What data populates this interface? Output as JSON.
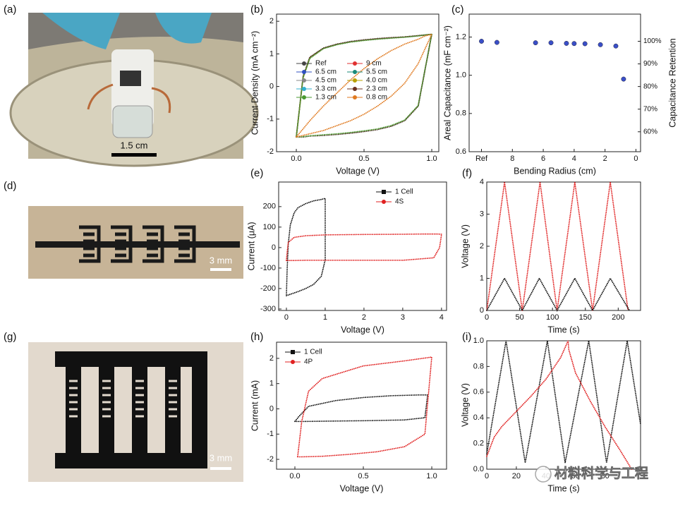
{
  "photos": [
    {
      "label": "(a)",
      "scale_bar": "1.5 cm"
    },
    {
      "label": "(d)",
      "scale_bar": "3 mm"
    },
    {
      "label": "(g)",
      "scale_bar": "3 mm"
    }
  ],
  "watermark": "材料科学与工程",
  "chart_data": [
    {
      "type": "line",
      "label": "(b)",
      "xlabel": "Voltage (V)",
      "ylabel": "Current Density (mA cm⁻²)",
      "xlim": [
        -0.146,
        1.052
      ],
      "ylim": [
        -2,
        2.22
      ],
      "xticks": [
        {
          "value": 0,
          "label": "0.0"
        },
        0.5,
        {
          "value": 1,
          "label": "1.0"
        }
      ],
      "yticks": [
        -2,
        -1,
        0,
        1,
        2
      ],
      "legend": "center",
      "x": [
        0,
        0.05,
        0.1,
        0.2,
        0.3,
        0.4,
        0.5,
        0.6,
        0.7,
        0.8,
        0.9,
        1.0,
        0.95,
        0.9,
        0.8,
        0.7,
        0.6,
        0.5,
        0.4,
        0.3,
        0.2,
        0.1,
        0.05,
        0
      ],
      "series": [
        {
          "name": "Ref",
          "color": "#444444",
          "marker": "circle",
          "values": [
            -1.55,
            -1.55,
            -1.52,
            -1.5,
            -1.47,
            -1.43,
            -1.38,
            -1.32,
            -1.22,
            -1.05,
            -0.6,
            1.6,
            1.58,
            1.56,
            1.52,
            1.5,
            1.47,
            1.43,
            1.38,
            1.3,
            1.18,
            0.9,
            0.3,
            -1.55
          ]
        },
        {
          "name": "9 cm",
          "color": "#e03030",
          "marker": "circle",
          "values": [
            -1.55,
            -1.55,
            -1.52,
            -1.5,
            -1.47,
            -1.43,
            -1.38,
            -1.32,
            -1.22,
            -1.05,
            -0.6,
            1.6,
            1.58,
            1.56,
            1.52,
            1.5,
            1.47,
            1.43,
            1.38,
            1.3,
            1.18,
            0.9,
            0.3,
            -1.55
          ]
        },
        {
          "name": "6.5 cm",
          "color": "#3050c0",
          "marker": "circle",
          "values": [
            -1.55,
            -1.54,
            -1.52,
            -1.49,
            -1.46,
            -1.42,
            -1.37,
            -1.31,
            -1.21,
            -1.04,
            -0.6,
            1.6,
            1.58,
            1.56,
            1.52,
            1.49,
            1.46,
            1.42,
            1.37,
            1.29,
            1.17,
            0.88,
            0.28,
            -1.55
          ]
        },
        {
          "name": "5.5 cm",
          "color": "#1a8a7a",
          "marker": "circle",
          "values": [
            -1.55,
            -1.55,
            -1.52,
            -1.5,
            -1.47,
            -1.43,
            -1.38,
            -1.32,
            -1.22,
            -1.05,
            -0.6,
            1.6,
            1.58,
            1.56,
            1.52,
            1.5,
            1.47,
            1.43,
            1.38,
            1.3,
            1.18,
            0.9,
            0.3,
            -1.55
          ]
        },
        {
          "name": "4.5 cm",
          "color": "#888888",
          "marker": "circle",
          "values": [
            -1.55,
            -1.55,
            -1.52,
            -1.5,
            -1.47,
            -1.43,
            -1.38,
            -1.32,
            -1.22,
            -1.05,
            -0.6,
            1.6,
            1.58,
            1.56,
            1.52,
            1.5,
            1.47,
            1.43,
            1.38,
            1.3,
            1.18,
            0.9,
            0.3,
            -1.55
          ]
        },
        {
          "name": "4.0 cm",
          "color": "#b8a000",
          "marker": "circle",
          "values": [
            -1.55,
            -1.54,
            -1.52,
            -1.49,
            -1.46,
            -1.42,
            -1.37,
            -1.31,
            -1.21,
            -1.04,
            -0.6,
            1.6,
            1.58,
            1.56,
            1.52,
            1.49,
            1.46,
            1.42,
            1.37,
            1.29,
            1.17,
            0.88,
            0.28,
            -1.55
          ]
        },
        {
          "name": "3.3 cm",
          "color": "#30b0d0",
          "marker": "circle",
          "values": [
            -1.55,
            -1.55,
            -1.52,
            -1.5,
            -1.47,
            -1.43,
            -1.38,
            -1.32,
            -1.22,
            -1.05,
            -0.6,
            1.6,
            1.58,
            1.56,
            1.52,
            1.5,
            1.47,
            1.43,
            1.38,
            1.3,
            1.18,
            0.9,
            0.3,
            -1.55
          ]
        },
        {
          "name": "2.3 cm",
          "color": "#6a3020",
          "marker": "circle",
          "values": [
            -1.55,
            -1.55,
            -1.52,
            -1.5,
            -1.47,
            -1.43,
            -1.38,
            -1.32,
            -1.22,
            -1.05,
            -0.6,
            1.6,
            1.58,
            1.56,
            1.52,
            1.5,
            1.47,
            1.43,
            1.38,
            1.3,
            1.18,
            0.9,
            0.3,
            -1.55
          ]
        },
        {
          "name": "1.3 cm",
          "color": "#4a9a30",
          "marker": "circle",
          "values": [
            -1.55,
            -1.54,
            -1.51,
            -1.48,
            -1.45,
            -1.41,
            -1.36,
            -1.3,
            -1.2,
            -1.03,
            -0.58,
            1.6,
            1.58,
            1.55,
            1.51,
            1.48,
            1.45,
            1.41,
            1.36,
            1.28,
            1.16,
            0.86,
            0.26,
            -1.55
          ]
        },
        {
          "name": "0.8 cm",
          "color": "#e07a20",
          "marker": "circle",
          "values": [
            -1.55,
            -1.5,
            -1.45,
            -1.35,
            -1.2,
            -1.05,
            -0.85,
            -0.6,
            -0.3,
            0.1,
            0.7,
            1.6,
            1.55,
            1.45,
            1.3,
            1.1,
            0.85,
            0.55,
            0.2,
            -0.2,
            -0.6,
            -1.05,
            -1.3,
            -1.55
          ]
        }
      ]
    },
    {
      "type": "scatter",
      "label": "(c)",
      "xlabel": "Bending Radius (cm)",
      "ylabel": "Areal Capacitance (mF cm⁻²)",
      "y2label": "Capacitance Retention",
      "xlim": [
        10.8,
        -0.3
      ],
      "ylim": [
        0.6,
        1.32
      ],
      "y2lim": [
        51.2,
        112
      ],
      "xticks": [
        {
          "value": 10,
          "label": "Ref"
        },
        8,
        6,
        4,
        2,
        0
      ],
      "yticks": [
        0.6,
        0.8,
        {
          "value": 1,
          "label": "1.0"
        },
        1.2
      ],
      "y2ticks": [
        {
          "value": 60,
          "label": "60%"
        },
        {
          "value": 70,
          "label": "70%"
        },
        {
          "value": 80,
          "label": "80%"
        },
        {
          "value": 90,
          "label": "90%"
        },
        {
          "value": 100,
          "label": "100%"
        }
      ],
      "color": "#3a4fc8",
      "x": [
        10,
        9,
        6.5,
        5.5,
        4.5,
        4.0,
        3.3,
        2.3,
        1.3,
        0.8
      ],
      "values": [
        1.178,
        1.172,
        1.17,
        1.17,
        1.167,
        1.166,
        1.165,
        1.16,
        1.153,
        0.98
      ]
    },
    {
      "type": "line",
      "label": "(e)",
      "xlabel": "Voltage (V)",
      "ylabel": "Current (μA)",
      "xlim": [
        -0.2,
        4.13
      ],
      "ylim": [
        -307,
        320
      ],
      "xticks": [
        0,
        1,
        2,
        3,
        4
      ],
      "yticks": [
        -300,
        -200,
        -100,
        0,
        100,
        200
      ],
      "legend": "upper right",
      "series": [
        {
          "name": "1 Cell",
          "color": "#111111",
          "marker": "square",
          "x": [
            0,
            0.1,
            0.3,
            0.5,
            0.7,
            0.9,
            1.0,
            1.0,
            1.0,
            0.9,
            0.7,
            0.5,
            0.3,
            0.2,
            0.1,
            0.05,
            0.02,
            0
          ],
          "values": [
            -235,
            -228,
            -215,
            -200,
            -180,
            -140,
            -60,
            100,
            240,
            235,
            228,
            215,
            195,
            170,
            110,
            20,
            -100,
            -230
          ]
        },
        {
          "name": "4S",
          "color": "#e02020",
          "marker": "circle",
          "x": [
            0,
            0.05,
            0.2,
            0.5,
            1,
            2,
            3,
            3.8,
            3.95,
            4.0,
            3.9,
            3.5,
            3,
            2,
            1,
            0.5,
            0.2,
            0.05,
            0.02,
            0
          ],
          "values": [
            -63,
            -63,
            -63,
            -62,
            -62,
            -62,
            -62,
            -50,
            0,
            65,
            66,
            66,
            65,
            64,
            62,
            58,
            50,
            25,
            -20,
            -63
          ]
        }
      ]
    },
    {
      "type": "line",
      "label": "(f)",
      "xlabel": "Time (s)",
      "ylabel": "Voltage (V)",
      "xlim": [
        0,
        234
      ],
      "ylim": [
        0,
        4
      ],
      "xticks": [
        0,
        50,
        100,
        150,
        200
      ],
      "yticks": [
        0,
        1,
        2,
        3,
        4
      ],
      "series": [
        {
          "color": "#e02020",
          "x": [
            0,
            27,
            54,
            81,
            107,
            134,
            161,
            188,
            215
          ],
          "values": [
            0,
            4,
            0,
            4,
            0,
            4,
            0,
            4,
            0
          ]
        },
        {
          "color": "#111111",
          "x": [
            0,
            27,
            54,
            80,
            107,
            134,
            161,
            188,
            217
          ],
          "values": [
            0,
            1,
            0,
            1,
            0,
            1,
            0,
            1,
            0
          ]
        }
      ]
    },
    {
      "type": "line",
      "label": "(h)",
      "xlabel": "Voltage (V)",
      "ylabel": "Current (mA)",
      "xlim": [
        -0.134,
        1.108
      ],
      "ylim": [
        -2.39,
        2.64
      ],
      "xticks": [
        {
          "value": 0,
          "label": "0.0"
        },
        0.5,
        {
          "value": 1,
          "label": "1.0"
        }
      ],
      "yticks": [
        -2,
        -1,
        0,
        1,
        2
      ],
      "legend": "upper left",
      "series": [
        {
          "name": "1 Cell",
          "color": "#111111",
          "marker": "square",
          "x": [
            0,
            0.05,
            0.2,
            0.5,
            0.8,
            0.95,
            0.97,
            0.9,
            0.7,
            0.5,
            0.3,
            0.1,
            0.03,
            0
          ],
          "values": [
            -0.5,
            -0.5,
            -0.49,
            -0.47,
            -0.44,
            -0.35,
            0.55,
            0.55,
            0.52,
            0.45,
            0.33,
            0.1,
            -0.3,
            -0.5
          ]
        },
        {
          "name": "4P",
          "color": "#e02020",
          "marker": "circle",
          "x": [
            0.02,
            0.05,
            0.2,
            0.4,
            0.6,
            0.8,
            0.95,
            1.0,
            0.8,
            0.5,
            0.2,
            0.1,
            0.05,
            0.02
          ],
          "values": [
            -1.9,
            -1.9,
            -1.88,
            -1.8,
            -1.7,
            -1.5,
            -1.0,
            2.05,
            1.9,
            1.7,
            1.2,
            0.7,
            -0.5,
            -1.9
          ]
        }
      ]
    },
    {
      "type": "line",
      "label": "(i)",
      "xlabel": "Time (s)",
      "ylabel": "Voltage (V)",
      "xlim": [
        0,
        104
      ],
      "ylim": [
        0,
        1
      ],
      "xticks": [
        0,
        20,
        40,
        60,
        80
      ],
      "yticks": [
        {
          "value": 0,
          "label": "0.0"
        },
        0.2,
        0.4,
        0.6,
        0.8,
        {
          "value": 1,
          "label": "1.0"
        }
      ],
      "series": [
        {
          "color": "#111111",
          "x": [
            0,
            13,
            26,
            41,
            53,
            69,
            81,
            95,
            104
          ],
          "values": [
            0.12,
            1,
            0.05,
            1,
            0.05,
            1,
            0.05,
            1,
            0.35
          ]
        },
        {
          "color": "#e02020",
          "x": [
            0,
            5,
            10,
            20,
            30,
            40,
            50,
            55,
            55.5,
            60,
            70,
            80,
            90,
            98
          ],
          "values": [
            0.1,
            0.25,
            0.33,
            0.45,
            0.57,
            0.7,
            0.87,
            1.0,
            0.93,
            0.75,
            0.53,
            0.33,
            0.15,
            0
          ]
        }
      ]
    }
  ]
}
